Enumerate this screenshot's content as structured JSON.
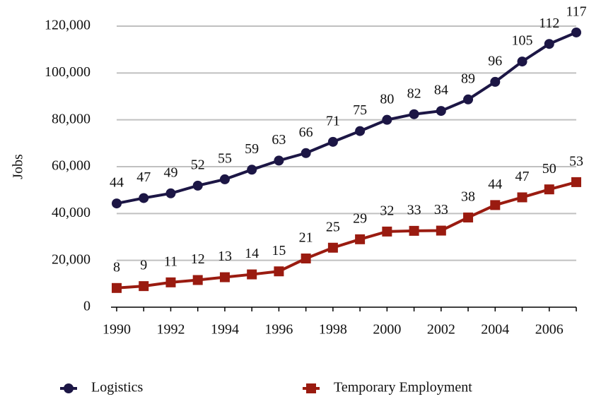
{
  "chart_data": {
    "type": "line",
    "ylabel": "Jobs",
    "x": [
      1990,
      1991,
      1992,
      1993,
      1994,
      1995,
      1996,
      1997,
      1998,
      1999,
      2000,
      2001,
      2002,
      2003,
      2004,
      2005,
      2006,
      2007
    ],
    "xlim": [
      1990,
      2007
    ],
    "xticks": [
      1990,
      1992,
      1994,
      1996,
      1998,
      2000,
      2002,
      2004,
      2006
    ],
    "ylim": [
      0,
      120000
    ],
    "yticks": [
      0,
      {
        "value": 20000,
        "label": "20,000"
      },
      {
        "value": 40000,
        "label": "40,000"
      },
      {
        "value": 60000,
        "label": "60,000"
      },
      {
        "value": 80000,
        "label": "80,000"
      },
      {
        "value": 100000,
        "label": "100,000"
      },
      {
        "value": 120000,
        "label": "120,000"
      }
    ],
    "grid": true,
    "legend": "bottom",
    "series": [
      {
        "name": "Logistics",
        "color": "#1c1645",
        "marker": "circle",
        "values": [
          44300,
          46600,
          48600,
          51900,
          54600,
          58700,
          62600,
          65800,
          70600,
          75200,
          80000,
          82400,
          83800,
          88700,
          96200,
          104900,
          112400,
          117300
        ],
        "value_labels": [
          "44",
          "47",
          "49",
          "52",
          "55",
          "59",
          "63",
          "66",
          "71",
          "75",
          "80",
          "82",
          "84",
          "89",
          "96",
          "105",
          "112",
          "117"
        ]
      },
      {
        "name": "Temporary Employment",
        "color": "#9a1b10",
        "marker": "square",
        "values": [
          8200,
          9000,
          10600,
          11600,
          12800,
          14000,
          15300,
          20800,
          25400,
          29000,
          32300,
          32600,
          32700,
          38300,
          43600,
          46900,
          50300,
          53400
        ],
        "value_labels": [
          "8",
          "9",
          "11",
          "12",
          "13",
          "14",
          "15",
          "21",
          "25",
          "29",
          "32",
          "33",
          "33",
          "38",
          "44",
          "47",
          "50",
          "53"
        ]
      }
    ]
  }
}
